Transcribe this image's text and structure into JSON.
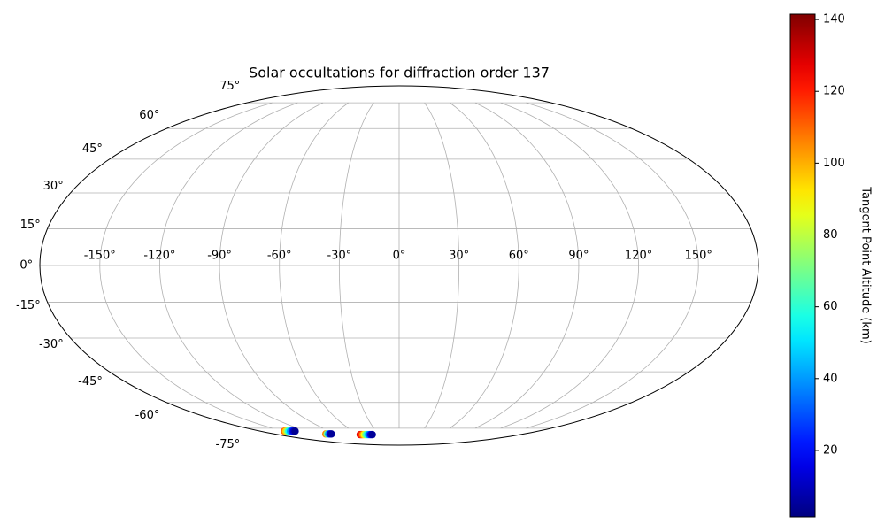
{
  "chart_data": {
    "type": "scatter",
    "projection": "mollweide",
    "title": "Solar occultations for diffraction order 137",
    "x": [
      -149,
      -147,
      -145,
      -143,
      -141,
      -139,
      -137,
      -135,
      -106,
      -104,
      -102,
      -100,
      -98,
      -58,
      -56,
      -54,
      -52,
      -50,
      -48,
      -46,
      -44,
      -42,
      -40
    ],
    "y": [
      -77,
      -77,
      -77,
      -77,
      -77,
      -77,
      -77,
      -77,
      -79,
      -79,
      -79,
      -79,
      -79,
      -79.5,
      -79.5,
      -79.5,
      -79.5,
      -79.5,
      -79.5,
      -79.5,
      -79.5,
      -79.5,
      -79.5
    ],
    "color_values": [
      110,
      95,
      75,
      55,
      40,
      25,
      12,
      4,
      105,
      70,
      40,
      15,
      5,
      128,
      118,
      105,
      90,
      75,
      60,
      45,
      30,
      15,
      5
    ],
    "xlim": [
      -180,
      180
    ],
    "ylim": [
      -90,
      90
    ],
    "xticks": [
      {
        "value": -150,
        "label": "-150°"
      },
      {
        "value": -120,
        "label": "-120°"
      },
      {
        "value": -90,
        "label": "-90°"
      },
      {
        "value": -60,
        "label": "-60°"
      },
      {
        "value": -30,
        "label": "-30°"
      },
      {
        "value": 0,
        "label": "0°"
      },
      {
        "value": 30,
        "label": "30°"
      },
      {
        "value": 60,
        "label": "60°"
      },
      {
        "value": 90,
        "label": "90°"
      },
      {
        "value": 120,
        "label": "120°"
      },
      {
        "value": 150,
        "label": "150°"
      }
    ],
    "yticks": [
      {
        "value": -75,
        "label": "-75°"
      },
      {
        "value": -60,
        "label": "-60°"
      },
      {
        "value": -45,
        "label": "-45°"
      },
      {
        "value": -30,
        "label": "-30°"
      },
      {
        "value": -15,
        "label": "-15°"
      },
      {
        "value": 0,
        "label": "0°"
      },
      {
        "value": 15,
        "label": "15°"
      },
      {
        "value": 30,
        "label": "30°"
      },
      {
        "value": 45,
        "label": "45°"
      },
      {
        "value": 60,
        "label": "60°"
      },
      {
        "value": 75,
        "label": "75°"
      }
    ],
    "grid": true,
    "colormap": "jet",
    "clim": [
      1.5,
      141.5
    ],
    "cticks": [
      20,
      40,
      60,
      80,
      100,
      120,
      140
    ],
    "colorbar_label": "Tangent Point Altitude (km)"
  }
}
